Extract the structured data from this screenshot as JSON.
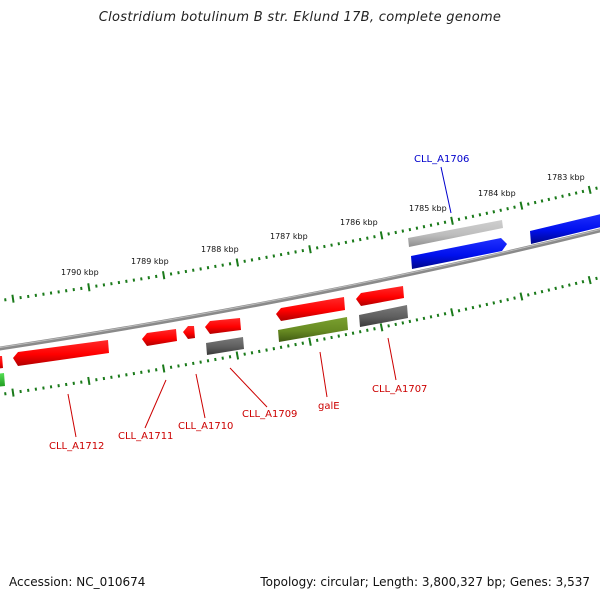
{
  "title": "Clostridium botulinum B str. Eklund 17B, complete genome",
  "footer": {
    "accession": "Accession: NC_010674",
    "summary": "Topology: circular; Length: 3,800,327 bp; Genes: 3,537"
  },
  "kbp_labels": [
    "1790 kbp",
    "1789 kbp",
    "1788 kbp",
    "1787 kbp",
    "1786 kbp",
    "1785 kbp",
    "1784 kbp",
    "1783 kbp"
  ],
  "gene_labels": [
    {
      "text": "CLL_A1706",
      "strand": "forward"
    },
    {
      "text": "CLL_A1712",
      "strand": "reverse"
    },
    {
      "text": "CLL_A1711",
      "strand": "reverse"
    },
    {
      "text": "CLL_A1710",
      "strand": "reverse"
    },
    {
      "text": "CLL_A1709",
      "strand": "reverse"
    },
    {
      "text": "galE",
      "strand": "reverse"
    },
    {
      "text": "CLL_A1707",
      "strand": "reverse"
    }
  ],
  "colors": {
    "forward_label": "#0000cc",
    "reverse_label": "#cc0000",
    "backbone": "#7f7f7f",
    "tick": "#1a7a1a",
    "gene_red": "#ff1a1a",
    "gene_blue": "#0a12e6",
    "gene_grey": "#6a6a6a",
    "gene_lightgrey": "#b8b8b8",
    "gene_olive": "#6b8c2a",
    "gene_green": "#33cc33"
  }
}
